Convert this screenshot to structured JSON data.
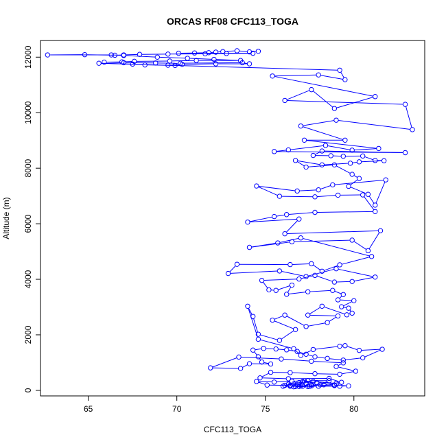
{
  "chart_data": {
    "type": "line",
    "title": "ORCAS RF08 CFC113_TOGA",
    "xlabel": "CFC113_TOGA",
    "ylabel": "Altitude (m)",
    "xlim": [
      62.3,
      84.0
    ],
    "ylim": [
      -200,
      12600
    ],
    "xticks": [
      65,
      70,
      75,
      80
    ],
    "yticks": [
      0,
      2000,
      4000,
      6000,
      8000,
      10000,
      12000
    ],
    "grid": false,
    "legend": "none",
    "color": "#0000ff",
    "markers": "open-circle",
    "points": [
      [
        74.6,
        12210
      ],
      [
        74.1,
        12190
      ],
      [
        73.4,
        12230
      ],
      [
        72.6,
        12200
      ],
      [
        72.2,
        12180
      ],
      [
        71.8,
        12160
      ],
      [
        71.0,
        12150
      ],
      [
        70.1,
        12140
      ],
      [
        74.3,
        12140
      ],
      [
        72.8,
        12130
      ],
      [
        71.6,
        12120
      ],
      [
        69.5,
        12110
      ],
      [
        67.9,
        12100
      ],
      [
        67.0,
        12080
      ],
      [
        66.5,
        12070
      ],
      [
        64.8,
        12090
      ],
      [
        62.7,
        12080
      ],
      [
        66.3,
        12080
      ],
      [
        67.0,
        12060
      ],
      [
        68.9,
        12000
      ],
      [
        70.6,
        11960
      ],
      [
        72.1,
        11920
      ],
      [
        73.6,
        11880
      ],
      [
        71.1,
        11880
      ],
      [
        69.6,
        11860
      ],
      [
        67.6,
        11850
      ],
      [
        66.9,
        11830
      ],
      [
        65.9,
        11820
      ],
      [
        67.0,
        11800
      ],
      [
        68.8,
        11790
      ],
      [
        70.2,
        11780
      ],
      [
        73.7,
        11800
      ],
      [
        74.1,
        11760
      ],
      [
        72.2,
        11760
      ],
      [
        70.3,
        11740
      ],
      [
        69.5,
        11710
      ],
      [
        69.9,
        11700
      ],
      [
        68.2,
        11720
      ],
      [
        67.5,
        11750
      ],
      [
        65.6,
        11780
      ],
      [
        79.2,
        11530
      ],
      [
        79.5,
        11190
      ],
      [
        78.0,
        11360
      ],
      [
        75.4,
        11320
      ],
      [
        81.2,
        10580
      ],
      [
        78.9,
        10150
      ],
      [
        77.6,
        10830
      ],
      [
        76.1,
        10440
      ],
      [
        82.9,
        10300
      ],
      [
        83.3,
        9390
      ],
      [
        79.0,
        9730
      ],
      [
        77.0,
        9520
      ],
      [
        79.5,
        9010
      ],
      [
        77.2,
        9010
      ],
      [
        81.4,
        8710
      ],
      [
        79.9,
        8650
      ],
      [
        78.4,
        8820
      ],
      [
        76.3,
        8660
      ],
      [
        75.5,
        8600
      ],
      [
        82.9,
        8560
      ],
      [
        78.2,
        8620
      ],
      [
        77.7,
        8460
      ],
      [
        78.7,
        8450
      ],
      [
        79.4,
        8430
      ],
      [
        80.5,
        8440
      ],
      [
        81.2,
        8280
      ],
      [
        81.7,
        8270
      ],
      [
        80.3,
        8230
      ],
      [
        79.8,
        8180
      ],
      [
        78.2,
        8120
      ],
      [
        76.7,
        8280
      ],
      [
        77.3,
        8040
      ],
      [
        78.9,
        8120
      ],
      [
        79.9,
        7780
      ],
      [
        80.3,
        7630
      ],
      [
        79.7,
        7350
      ],
      [
        80.8,
        7060
      ],
      [
        81.2,
        6670
      ],
      [
        81.8,
        7580
      ],
      [
        78.8,
        7400
      ],
      [
        78.0,
        7220
      ],
      [
        76.8,
        7180
      ],
      [
        74.5,
        7360
      ],
      [
        75.8,
        6990
      ],
      [
        77.8,
        6970
      ],
      [
        79.1,
        7030
      ],
      [
        80.5,
        7040
      ],
      [
        81.2,
        6440
      ],
      [
        77.8,
        6410
      ],
      [
        76.2,
        6330
      ],
      [
        75.5,
        6260
      ],
      [
        74.0,
        6060
      ],
      [
        76.9,
        6170
      ],
      [
        76.1,
        5640
      ],
      [
        81.5,
        5750
      ],
      [
        80.8,
        5030
      ],
      [
        79.9,
        5410
      ],
      [
        76.5,
        5350
      ],
      [
        74.1,
        5150
      ],
      [
        75.7,
        5310
      ],
      [
        77.0,
        5490
      ],
      [
        81.0,
        4820
      ],
      [
        79.2,
        4520
      ],
      [
        78.2,
        4290
      ],
      [
        77.6,
        4560
      ],
      [
        76.4,
        4530
      ],
      [
        73.4,
        4540
      ],
      [
        72.9,
        4210
      ],
      [
        75.8,
        4300
      ],
      [
        77.3,
        4100
      ],
      [
        79.0,
        4380
      ],
      [
        81.2,
        4080
      ],
      [
        79.9,
        3920
      ],
      [
        78.9,
        3900
      ],
      [
        77.8,
        4140
      ],
      [
        76.9,
        4010
      ],
      [
        74.8,
        3960
      ],
      [
        75.2,
        3620
      ],
      [
        75.6,
        3600
      ],
      [
        76.5,
        3790
      ],
      [
        76.2,
        3460
      ],
      [
        77.4,
        3550
      ],
      [
        78.8,
        3600
      ],
      [
        79.4,
        3450
      ],
      [
        79.1,
        3260
      ],
      [
        80.0,
        3230
      ],
      [
        79.3,
        3010
      ],
      [
        79.7,
        2960
      ],
      [
        79.9,
        2780
      ],
      [
        79.6,
        2720
      ],
      [
        78.2,
        3030
      ],
      [
        77.4,
        2710
      ],
      [
        79.1,
        2680
      ],
      [
        78.5,
        2440
      ],
      [
        77.3,
        2300
      ],
      [
        76.1,
        2710
      ],
      [
        75.4,
        2530
      ],
      [
        76.7,
        2190
      ],
      [
        75.8,
        1800
      ],
      [
        74.6,
        2020
      ],
      [
        74.3,
        2660
      ],
      [
        74.0,
        3030
      ],
      [
        74.6,
        1840
      ],
      [
        76.6,
        1500
      ],
      [
        77.0,
        1260
      ],
      [
        77.7,
        1470
      ],
      [
        79.2,
        1590
      ],
      [
        79.5,
        1610
      ],
      [
        80.3,
        1440
      ],
      [
        81.6,
        1480
      ],
      [
        80.5,
        1170
      ],
      [
        79.4,
        1090
      ],
      [
        78.5,
        1150
      ],
      [
        77.8,
        1210
      ],
      [
        77.3,
        1300
      ],
      [
        76.8,
        1400
      ],
      [
        76.2,
        1460
      ],
      [
        75.6,
        1490
      ],
      [
        74.9,
        1510
      ],
      [
        74.3,
        1450
      ],
      [
        74.6,
        1210
      ],
      [
        74.8,
        1020
      ],
      [
        75.3,
        950
      ],
      [
        74.1,
        960
      ],
      [
        73.6,
        790
      ],
      [
        71.9,
        810
      ],
      [
        73.5,
        1200
      ],
      [
        75.9,
        1130
      ],
      [
        77.6,
        1050
      ],
      [
        79.4,
        990
      ],
      [
        79.0,
        860
      ],
      [
        80.1,
        690
      ],
      [
        79.2,
        580
      ],
      [
        77.8,
        600
      ],
      [
        76.4,
        640
      ],
      [
        75.3,
        650
      ],
      [
        74.7,
        450
      ],
      [
        76.3,
        420
      ],
      [
        78.6,
        430
      ],
      [
        79.3,
        290
      ],
      [
        78.3,
        200
      ],
      [
        77.1,
        150
      ],
      [
        76.4,
        180
      ],
      [
        75.1,
        190
      ],
      [
        74.5,
        320
      ],
      [
        75.5,
        300
      ],
      [
        76.5,
        330
      ],
      [
        77.4,
        350
      ],
      [
        78.6,
        350
      ],
      [
        78.1,
        200
      ],
      [
        77.6,
        160
      ],
      [
        76.7,
        140
      ],
      [
        76.1,
        180
      ],
      [
        76.6,
        230
      ],
      [
        77.1,
        310
      ],
      [
        77.9,
        280
      ],
      [
        78.9,
        190
      ],
      [
        79.7,
        160
      ],
      [
        79.2,
        150
      ],
      [
        78.0,
        150
      ],
      [
        76.9,
        140
      ],
      [
        76.4,
        150
      ],
      [
        76.0,
        150
      ],
      [
        76.3,
        220
      ],
      [
        76.9,
        280
      ],
      [
        77.3,
        260
      ],
      [
        77.6,
        200
      ],
      [
        78.9,
        170
      ],
      [
        79.0,
        250
      ],
      [
        77.7,
        320
      ],
      [
        77.2,
        340
      ],
      [
        76.8,
        200
      ],
      [
        77.4,
        140
      ],
      [
        76.6,
        130
      ],
      [
        77.0,
        170
      ],
      [
        77.5,
        150
      ]
    ]
  }
}
